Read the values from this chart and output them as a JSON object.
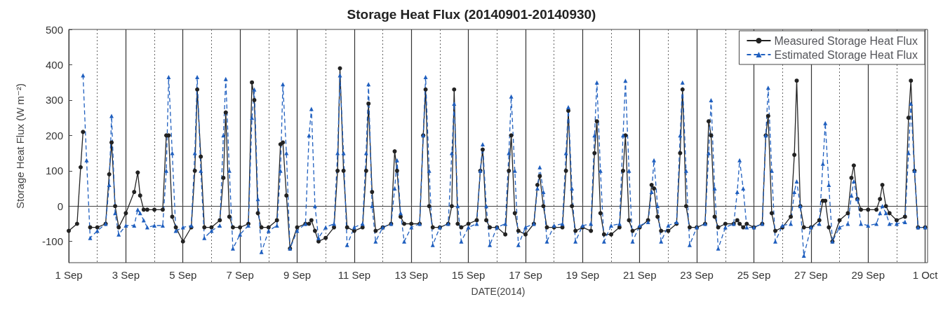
{
  "chart_data": {
    "type": "line",
    "title": "Storage Heat Flux (20140901-20140930)",
    "xlabel": "DATE(2014)",
    "ylabel": "Storage Heat Flux (W m⁻²)",
    "xlim": [
      "2014-09-01",
      "2014-10-01T02:00"
    ],
    "ylim": [
      -160,
      500
    ],
    "yticks": [
      -100,
      0,
      100,
      200,
      300,
      400,
      500
    ],
    "xticks": [
      {
        "value": "2014-09-01",
        "label": "1 Sep"
      },
      {
        "value": "2014-09-02",
        "label": null
      },
      {
        "value": "2014-09-03",
        "label": "3 Sep"
      },
      {
        "value": "2014-09-04",
        "label": null
      },
      {
        "value": "2014-09-05",
        "label": "5 Sep"
      },
      {
        "value": "2014-09-06",
        "label": null
      },
      {
        "value": "2014-09-07",
        "label": "7 Sep"
      },
      {
        "value": "2014-09-08",
        "label": null
      },
      {
        "value": "2014-09-09",
        "label": "9 Sep"
      },
      {
        "value": "2014-09-10",
        "label": null
      },
      {
        "value": "2014-09-11",
        "label": "11 Sep"
      },
      {
        "value": "2014-09-12",
        "label": null
      },
      {
        "value": "2014-09-13",
        "label": "13 Sep"
      },
      {
        "value": "2014-09-14",
        "label": null
      },
      {
        "value": "2014-09-15",
        "label": "15 Sep"
      },
      {
        "value": "2014-09-16",
        "label": null
      },
      {
        "value": "2014-09-17",
        "label": "17 Sep"
      },
      {
        "value": "2014-09-18",
        "label": null
      },
      {
        "value": "2014-09-19",
        "label": "19 Sep"
      },
      {
        "value": "2014-09-20",
        "label": null
      },
      {
        "value": "2014-09-21",
        "label": "21 Sep"
      },
      {
        "value": "2014-09-22",
        "label": null
      },
      {
        "value": "2014-09-23",
        "label": "23 Sep"
      },
      {
        "value": "2014-09-24",
        "label": null
      },
      {
        "value": "2014-09-25",
        "label": "25 Sep"
      },
      {
        "value": "2014-09-26",
        "label": null
      },
      {
        "value": "2014-09-27",
        "label": "27 Sep"
      },
      {
        "value": "2014-09-28",
        "label": null
      },
      {
        "value": "2014-09-29",
        "label": "29 Sep"
      },
      {
        "value": "2014-09-30",
        "label": null
      },
      {
        "value": "2014-10-01",
        "label": "1 Oct"
      }
    ],
    "grid": "x",
    "legend": "top right",
    "x": [
      "2014-09-01T00:00",
      "2014-09-01T07:00",
      "2014-09-01T10:00",
      "2014-09-01T12:00",
      "2014-09-01T15:00",
      "2014-09-01T18:00",
      "2014-09-02T00:00",
      "2014-09-02T07:00",
      "2014-09-02T10:00",
      "2014-09-02T12:00",
      "2014-09-02T15:00",
      "2014-09-02T18:00",
      "2014-09-03T00:00",
      "2014-09-03T07:00",
      "2014-09-03T10:00",
      "2014-09-03T12:00",
      "2014-09-03T15:00",
      "2014-09-03T18:00",
      "2014-09-04T00:00",
      "2014-09-04T07:00",
      "2014-09-04T10:00",
      "2014-09-04T12:00",
      "2014-09-04T15:00",
      "2014-09-04T18:00",
      "2014-09-05T00:00",
      "2014-09-05T07:00",
      "2014-09-05T10:00",
      "2014-09-05T12:00",
      "2014-09-05T15:00",
      "2014-09-05T18:00",
      "2014-09-06T00:00",
      "2014-09-06T07:00",
      "2014-09-06T10:00",
      "2014-09-06T12:00",
      "2014-09-06T15:00",
      "2014-09-06T18:00",
      "2014-09-07T00:00",
      "2014-09-07T07:00",
      "2014-09-07T10:00",
      "2014-09-07T12:00",
      "2014-09-07T15:00",
      "2014-09-07T18:00",
      "2014-09-08T00:00",
      "2014-09-08T07:00",
      "2014-09-08T10:00",
      "2014-09-08T12:00",
      "2014-09-08T15:00",
      "2014-09-08T18:00",
      "2014-09-09T00:00",
      "2014-09-09T07:00",
      "2014-09-09T10:00",
      "2014-09-09T12:00",
      "2014-09-09T15:00",
      "2014-09-09T18:00",
      "2014-09-10T00:00",
      "2014-09-10T07:00",
      "2014-09-10T10:00",
      "2014-09-10T12:00",
      "2014-09-10T15:00",
      "2014-09-10T18:00",
      "2014-09-11T00:00",
      "2014-09-11T07:00",
      "2014-09-11T10:00",
      "2014-09-11T12:00",
      "2014-09-11T15:00",
      "2014-09-11T18:00",
      "2014-09-12T00:00",
      "2014-09-12T07:00",
      "2014-09-12T10:00",
      "2014-09-12T12:00",
      "2014-09-12T15:00",
      "2014-09-12T18:00",
      "2014-09-13T00:00",
      "2014-09-13T07:00",
      "2014-09-13T10:00",
      "2014-09-13T12:00",
      "2014-09-13T15:00",
      "2014-09-13T18:00",
      "2014-09-14T00:00",
      "2014-09-14T07:00",
      "2014-09-14T10:00",
      "2014-09-14T12:00",
      "2014-09-14T15:00",
      "2014-09-14T18:00",
      "2014-09-15T00:00",
      "2014-09-15T07:00",
      "2014-09-15T10:00",
      "2014-09-15T12:00",
      "2014-09-15T15:00",
      "2014-09-15T18:00",
      "2014-09-16T00:00",
      "2014-09-16T07:00",
      "2014-09-16T10:00",
      "2014-09-16T12:00",
      "2014-09-16T15:00",
      "2014-09-16T18:00",
      "2014-09-17T00:00",
      "2014-09-17T07:00",
      "2014-09-17T10:00",
      "2014-09-17T12:00",
      "2014-09-17T15:00",
      "2014-09-17T18:00",
      "2014-09-18T00:00",
      "2014-09-18T07:00",
      "2014-09-18T10:00",
      "2014-09-18T12:00",
      "2014-09-18T15:00",
      "2014-09-18T18:00",
      "2014-09-19T00:00",
      "2014-09-19T07:00",
      "2014-09-19T10:00",
      "2014-09-19T12:00",
      "2014-09-19T15:00",
      "2014-09-19T18:00",
      "2014-09-20T00:00",
      "2014-09-20T07:00",
      "2014-09-20T10:00",
      "2014-09-20T12:00",
      "2014-09-20T15:00",
      "2014-09-20T18:00",
      "2014-09-21T00:00",
      "2014-09-21T07:00",
      "2014-09-21T10:00",
      "2014-09-21T12:00",
      "2014-09-21T15:00",
      "2014-09-21T18:00",
      "2014-09-22T00:00",
      "2014-09-22T07:00",
      "2014-09-22T10:00",
      "2014-09-22T12:00",
      "2014-09-22T15:00",
      "2014-09-22T18:00",
      "2014-09-23T00:00",
      "2014-09-23T07:00",
      "2014-09-23T10:00",
      "2014-09-23T12:00",
      "2014-09-23T15:00",
      "2014-09-23T18:00",
      "2014-09-24T00:00",
      "2014-09-24T07:00",
      "2014-09-24T10:00",
      "2014-09-24T12:00",
      "2014-09-24T15:00",
      "2014-09-24T18:00",
      "2014-09-25T00:00",
      "2014-09-25T07:00",
      "2014-09-25T10:00",
      "2014-09-25T12:00",
      "2014-09-25T15:00",
      "2014-09-25T18:00",
      "2014-09-26T00:00",
      "2014-09-26T07:00",
      "2014-09-26T10:00",
      "2014-09-26T12:00",
      "2014-09-26T15:00",
      "2014-09-26T18:00",
      "2014-09-27T00:00",
      "2014-09-27T07:00",
      "2014-09-27T10:00",
      "2014-09-27T12:00",
      "2014-09-27T15:00",
      "2014-09-27T18:00",
      "2014-09-28T00:00",
      "2014-09-28T07:00",
      "2014-09-28T10:00",
      "2014-09-28T12:00",
      "2014-09-28T15:00",
      "2014-09-28T18:00",
      "2014-09-29T00:00",
      "2014-09-29T07:00",
      "2014-09-29T10:00",
      "2014-09-29T12:00",
      "2014-09-29T15:00",
      "2014-09-29T18:00",
      "2014-09-30T00:00",
      "2014-09-30T07:00",
      "2014-09-30T10:00",
      "2014-09-30T12:00",
      "2014-09-30T15:00",
      "2014-09-30T18:00",
      "2014-10-01T00:00"
    ],
    "series": [
      {
        "name": "Measured Storage Heat Flux",
        "color": "#222222",
        "marker": "circle",
        "line_style": "solid",
        "values": [
          -70,
          -50,
          110,
          210,
          null,
          -60,
          -60,
          -50,
          90,
          180,
          0,
          -60,
          -20,
          40,
          95,
          30,
          -10,
          -10,
          -10,
          -10,
          200,
          200,
          -30,
          -60,
          -100,
          -60,
          100,
          330,
          140,
          -60,
          -60,
          -40,
          80,
          265,
          -30,
          -60,
          -60,
          -50,
          350,
          300,
          -20,
          -60,
          -60,
          -40,
          175,
          180,
          30,
          -120,
          -60,
          -50,
          -50,
          -40,
          -70,
          -100,
          -90,
          -60,
          100,
          390,
          100,
          -60,
          -70,
          -60,
          100,
          290,
          40,
          -70,
          -60,
          -50,
          155,
          100,
          -30,
          -50,
          -50,
          -50,
          200,
          330,
          0,
          -60,
          -60,
          -50,
          0,
          330,
          -50,
          -60,
          -50,
          -40,
          100,
          160,
          -40,
          -60,
          -60,
          -80,
          100,
          200,
          -20,
          -70,
          -80,
          -50,
          60,
          85,
          0,
          -60,
          -60,
          -60,
          100,
          270,
          0,
          -70,
          -60,
          -70,
          150,
          240,
          -20,
          -80,
          -80,
          -60,
          100,
          200,
          -40,
          -70,
          -60,
          -40,
          60,
          50,
          -30,
          -70,
          -70,
          -50,
          150,
          330,
          0,
          -60,
          -60,
          -50,
          240,
          200,
          -30,
          -60,
          -50,
          -50,
          -40,
          -50,
          -60,
          -50,
          -60,
          -50,
          200,
          255,
          -20,
          -70,
          -60,
          -30,
          145,
          355,
          0,
          -60,
          -60,
          -40,
          15,
          15,
          -60,
          -100,
          -40,
          -20,
          80,
          115,
          20,
          -10,
          -10,
          -10,
          20,
          60,
          0,
          -20,
          -40,
          -30,
          250,
          355,
          100,
          -60,
          -60
        ]
      },
      {
        "name": "Estimated Storage Heat Flux",
        "color": "#1f5fbf",
        "marker": "triangle",
        "line_style": "dashed",
        "values": [
          null,
          null,
          null,
          370,
          130,
          -90,
          -70,
          -50,
          60,
          255,
          -20,
          -80,
          -55,
          -55,
          -10,
          -20,
          -40,
          -60,
          -55,
          -55,
          100,
          365,
          150,
          -70,
          -60,
          -55,
          150,
          365,
          100,
          -90,
          -70,
          -55,
          200,
          360,
          100,
          -120,
          -80,
          -55,
          250,
          330,
          20,
          -130,
          -70,
          -55,
          100,
          345,
          150,
          -120,
          -70,
          -50,
          200,
          275,
          0,
          -90,
          -60,
          -50,
          150,
          370,
          150,
          -110,
          -60,
          -50,
          150,
          345,
          0,
          -100,
          -60,
          -50,
          50,
          130,
          -20,
          -100,
          -60,
          -50,
          200,
          365,
          100,
          -110,
          -60,
          -50,
          150,
          290,
          0,
          -100,
          -60,
          -50,
          100,
          175,
          0,
          -110,
          -60,
          -50,
          150,
          310,
          100,
          -110,
          -60,
          -50,
          50,
          110,
          40,
          -100,
          -55,
          -50,
          150,
          280,
          50,
          -100,
          -55,
          -50,
          200,
          350,
          100,
          -100,
          -55,
          -50,
          200,
          355,
          100,
          -100,
          -55,
          -45,
          40,
          130,
          0,
          -100,
          -55,
          -45,
          200,
          350,
          100,
          -110,
          -60,
          -50,
          150,
          300,
          50,
          -120,
          -60,
          -50,
          40,
          130,
          50,
          -60,
          -60,
          -50,
          200,
          335,
          100,
          -100,
          -55,
          -50,
          40,
          70,
          0,
          -140,
          -60,
          -50,
          120,
          235,
          60,
          -100,
          -60,
          -50,
          30,
          70,
          20,
          -50,
          -55,
          -50,
          -20,
          0,
          -20,
          -50,
          -50,
          -45,
          150,
          290,
          100,
          -60,
          -60
        ]
      }
    ]
  }
}
